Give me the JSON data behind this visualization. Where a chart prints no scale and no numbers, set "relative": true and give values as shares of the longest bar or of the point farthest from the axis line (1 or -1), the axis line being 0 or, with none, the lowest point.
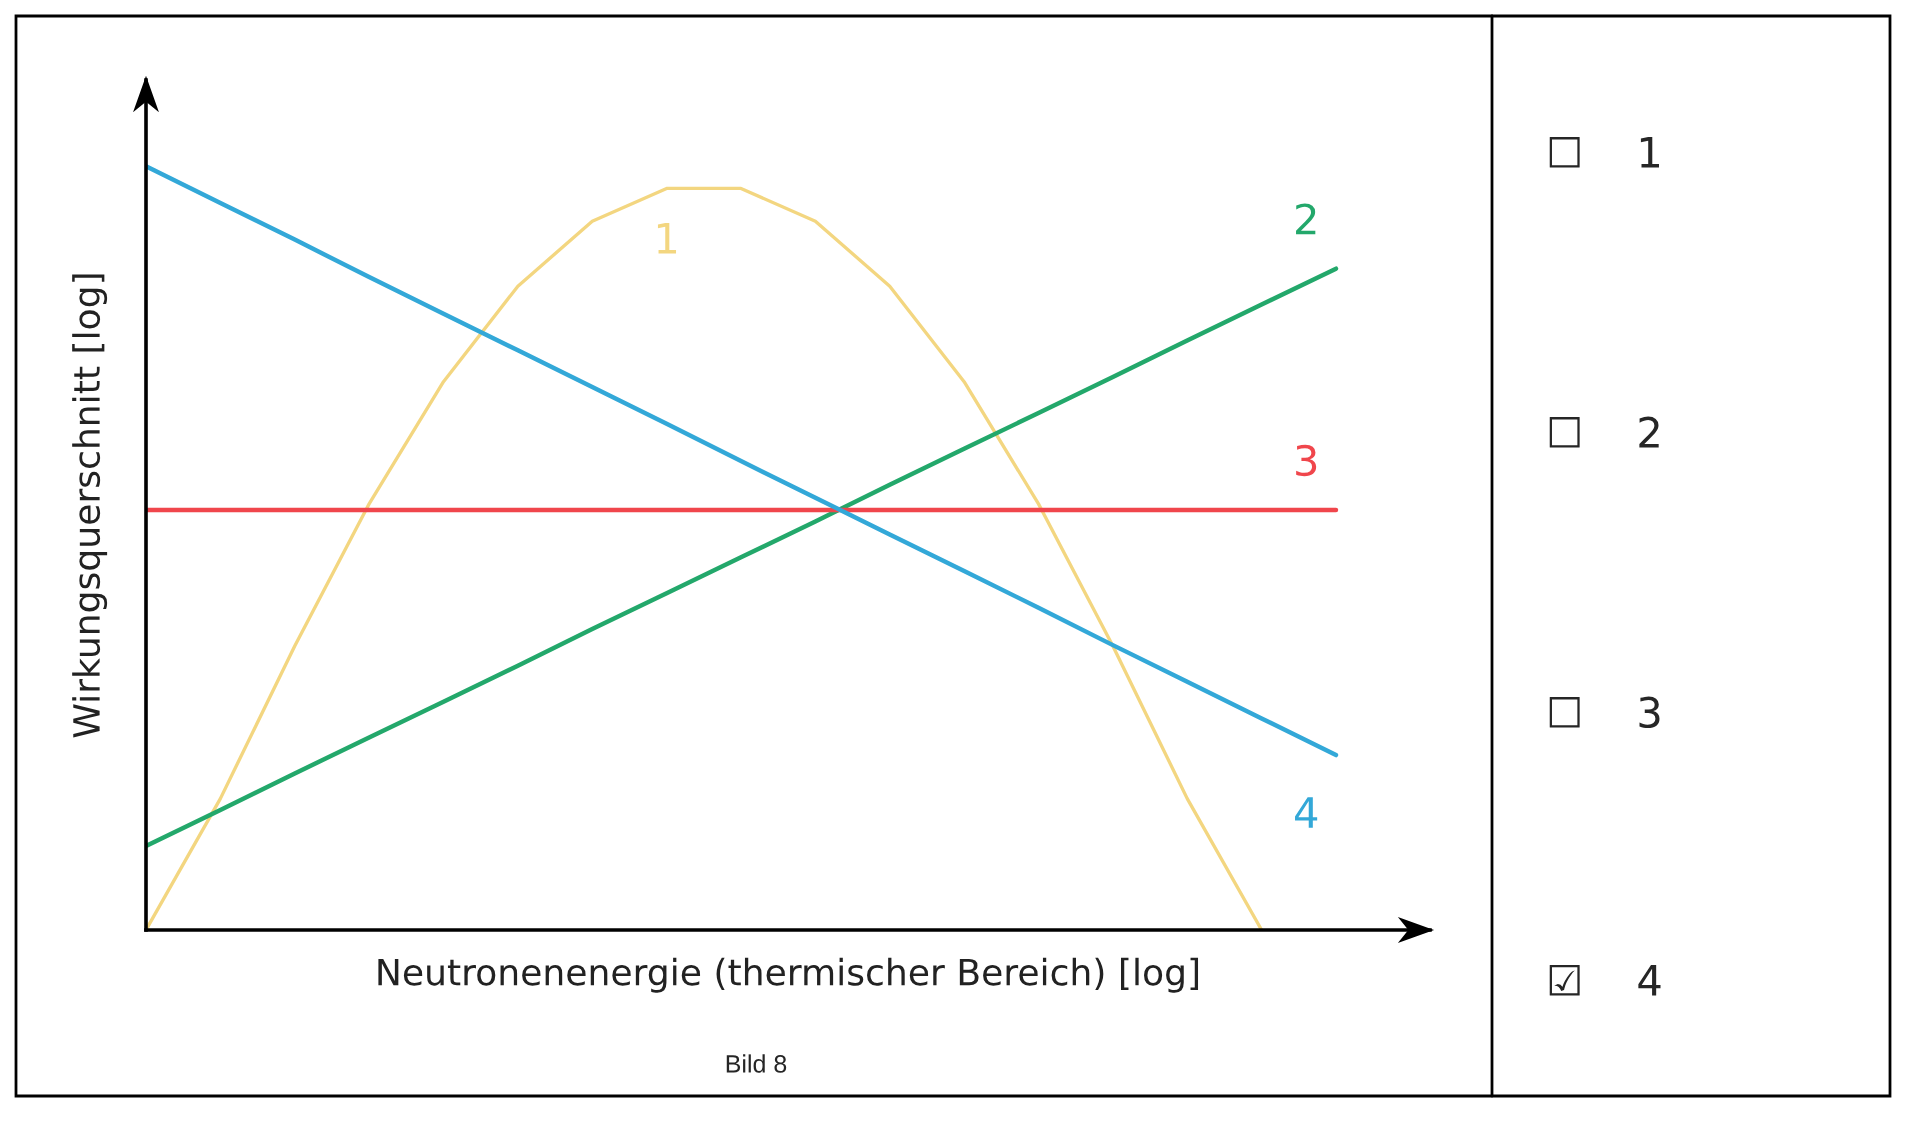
{
  "chart_data": [
    {
      "type": "line",
      "relative": true,
      "xlabel": "Neutronenenergie (thermischer Bereich) [log]",
      "ylabel": "Wirkungsquerschnitt [log]",
      "annotations": [
        "Bild 8",
        "☐    1",
        "☐    2",
        "☐    3",
        "☑    4"
      ],
      "grid": false,
      "legend": false,
      "tick_labels": false,
      "categories": [
        null,
        null,
        null,
        null,
        null,
        null,
        null,
        null,
        null,
        null,
        null,
        null,
        null,
        null,
        null,
        null,
        null
      ],
      "series": [
        {
          "name": "1",
          "color": "#f3d680",
          "values": [
            0,
            0.172,
            0.372,
            0.558,
            0.718,
            0.843,
            0.928,
            0.971,
            0.971,
            0.928,
            0.843,
            0.718,
            0.558,
            0.372,
            0.172,
            0,
            null
          ]
        },
        {
          "name": "2",
          "color": "#23a86b",
          "values": [
            0.11,
            0.157,
            0.205,
            0.252,
            0.299,
            0.346,
            0.394,
            0.441,
            0.488,
            0.535,
            0.583,
            0.63,
            0.677,
            0.724,
            0.772,
            0.819,
            0.866
          ]
        },
        {
          "name": "3",
          "color": "#f0464c",
          "values": [
            0.55,
            0.55,
            0.55,
            0.55,
            0.55,
            0.55,
            0.55,
            0.55,
            0.55,
            0.55,
            0.55,
            0.55,
            0.55,
            0.55,
            0.55,
            0.55,
            0.55
          ]
        },
        {
          "name": "4",
          "color": "#33a8d8",
          "values": [
            1,
            0.952,
            0.904,
            0.855,
            0.807,
            0.759,
            0.711,
            0.663,
            0.614,
            0.566,
            0.518,
            0.47,
            0.422,
            0.373,
            0.325,
            0.277,
            0.229
          ]
        }
      ]
    }
  ]
}
